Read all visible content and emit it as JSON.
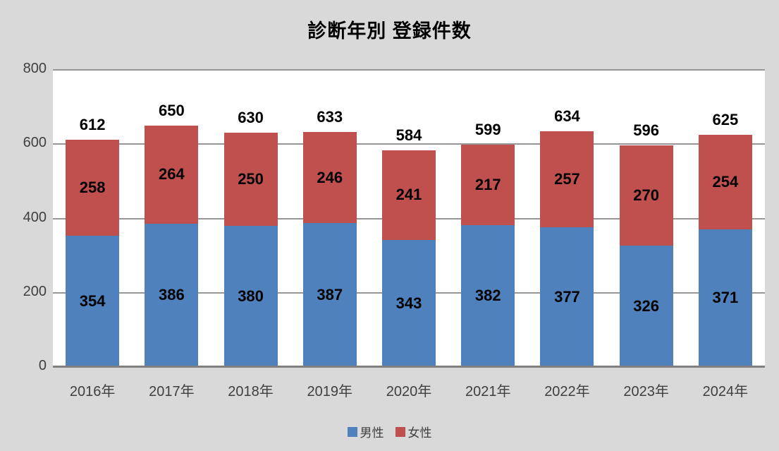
{
  "title": "診断年別 登録件数",
  "colors": {
    "male": "#4F81BD",
    "female": "#C0504D",
    "background": "#D9D9D9",
    "plot_background": "#FFFFFF",
    "gridline": "#969696",
    "axis_line": "#808080",
    "label_text": "#000000",
    "tick_text": "#3F3F3F"
  },
  "legend": {
    "items": [
      {
        "label": "男性",
        "color": "#4F81BD"
      },
      {
        "label": "女性",
        "color": "#C0504D"
      }
    ],
    "position": "bottom"
  },
  "chart_data": {
    "type": "bar",
    "stacked": true,
    "title": "診断年別 登録件数",
    "categories": [
      "2016年",
      "2017年",
      "2018年",
      "2019年",
      "2020年",
      "2021年",
      "2022年",
      "2023年",
      "2024年"
    ],
    "series": [
      {
        "name": "男性",
        "color": "#4F81BD",
        "values": [
          354,
          386,
          380,
          387,
          343,
          382,
          377,
          326,
          371
        ]
      },
      {
        "name": "女性",
        "color": "#C0504D",
        "values": [
          258,
          264,
          250,
          246,
          241,
          217,
          257,
          270,
          254
        ]
      }
    ],
    "totals": [
      612,
      650,
      630,
      633,
      584,
      599,
      634,
      596,
      625
    ],
    "xlabel": "",
    "ylabel": "",
    "y_ticks": [
      0,
      200,
      400,
      600,
      800
    ],
    "ylim": [
      0,
      800
    ],
    "grid": true,
    "legend_position": "bottom"
  }
}
